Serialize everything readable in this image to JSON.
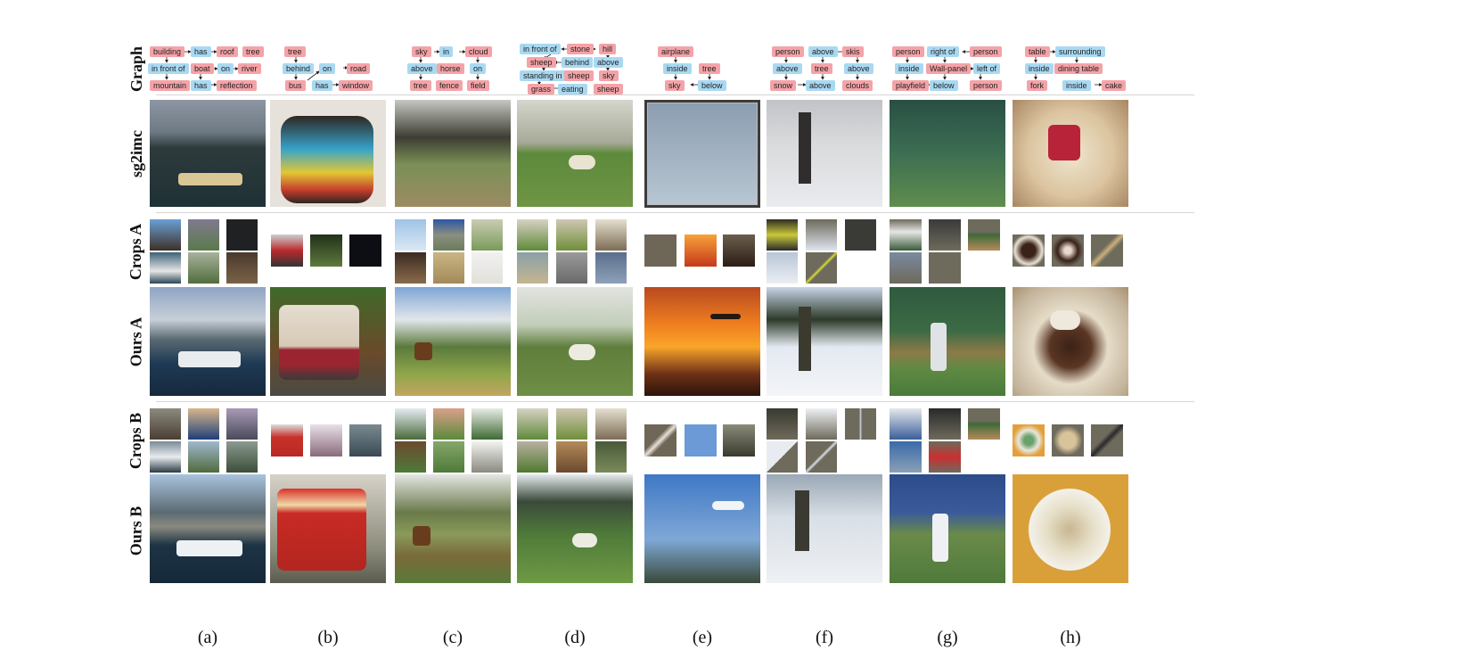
{
  "rows": {
    "graph": "Graph",
    "sg2im": "sg2imc",
    "crops_a": "Crops A",
    "ours_a": "Ours A",
    "crops_b": "Crops B",
    "ours_b": "Ours B"
  },
  "columns": [
    "(a)",
    "(b)",
    "(c)",
    "(d)",
    "(e)",
    "(f)",
    "(g)",
    "(h)"
  ],
  "graphs": [
    [
      {
        "t": "building",
        "k": "obj"
      },
      {
        "t": "has",
        "k": "rel"
      },
      {
        "t": "roof",
        "k": "obj"
      },
      {
        "t": "tree",
        "k": "obj"
      },
      {
        "t": "in front of",
        "k": "rel"
      },
      {
        "t": "boat",
        "k": "obj"
      },
      {
        "t": "on",
        "k": "rel"
      },
      {
        "t": "river",
        "k": "obj"
      },
      {
        "t": "mountain",
        "k": "obj"
      },
      {
        "t": "has",
        "k": "rel"
      },
      {
        "t": "reflection",
        "k": "obj"
      }
    ],
    [
      {
        "t": "tree",
        "k": "obj"
      },
      {
        "t": "behind",
        "k": "rel"
      },
      {
        "t": "on",
        "k": "rel"
      },
      {
        "t": "road",
        "k": "obj"
      },
      {
        "t": "bus",
        "k": "obj"
      },
      {
        "t": "has",
        "k": "rel"
      },
      {
        "t": "window",
        "k": "obj"
      }
    ],
    [
      {
        "t": "sky",
        "k": "obj"
      },
      {
        "t": "in",
        "k": "rel"
      },
      {
        "t": "cloud",
        "k": "obj"
      },
      {
        "t": "above",
        "k": "rel"
      },
      {
        "t": "horse",
        "k": "obj"
      },
      {
        "t": "on",
        "k": "rel"
      },
      {
        "t": "tree",
        "k": "obj"
      },
      {
        "t": "fence",
        "k": "obj"
      },
      {
        "t": "field",
        "k": "obj"
      }
    ],
    [
      {
        "t": "in front of",
        "k": "rel"
      },
      {
        "t": "stone",
        "k": "obj"
      },
      {
        "t": "hill",
        "k": "obj"
      },
      {
        "t": "sheep",
        "k": "obj"
      },
      {
        "t": "behind",
        "k": "rel"
      },
      {
        "t": "above",
        "k": "rel"
      },
      {
        "t": "standing in",
        "k": "rel"
      },
      {
        "t": "sheep",
        "k": "obj"
      },
      {
        "t": "sky",
        "k": "obj"
      },
      {
        "t": "grass",
        "k": "obj"
      },
      {
        "t": "eating",
        "k": "rel"
      },
      {
        "t": "sheep",
        "k": "obj"
      }
    ],
    [
      {
        "t": "airplane",
        "k": "obj"
      },
      {
        "t": "inside",
        "k": "rel"
      },
      {
        "t": "tree",
        "k": "obj"
      },
      {
        "t": "sky",
        "k": "obj"
      },
      {
        "t": "below",
        "k": "rel"
      }
    ],
    [
      {
        "t": "person",
        "k": "obj"
      },
      {
        "t": "above",
        "k": "rel"
      },
      {
        "t": "skis",
        "k": "obj"
      },
      {
        "t": "above",
        "k": "rel"
      },
      {
        "t": "tree",
        "k": "obj"
      },
      {
        "t": "above",
        "k": "rel"
      },
      {
        "t": "snow",
        "k": "obj"
      },
      {
        "t": "above",
        "k": "rel"
      },
      {
        "t": "clouds",
        "k": "obj"
      }
    ],
    [
      {
        "t": "person",
        "k": "obj"
      },
      {
        "t": "right of",
        "k": "rel"
      },
      {
        "t": "person",
        "k": "obj"
      },
      {
        "t": "inside",
        "k": "rel"
      },
      {
        "t": "Wall-panel",
        "k": "obj"
      },
      {
        "t": "left of",
        "k": "rel"
      },
      {
        "t": "playfield",
        "k": "obj"
      },
      {
        "t": "below",
        "k": "rel"
      },
      {
        "t": "person",
        "k": "obj"
      }
    ],
    [
      {
        "t": "table",
        "k": "obj"
      },
      {
        "t": "surrounding",
        "k": "rel"
      },
      {
        "t": "inside",
        "k": "rel"
      },
      {
        "t": "dining table",
        "k": "obj"
      },
      {
        "t": "fork",
        "k": "obj"
      },
      {
        "t": "inside",
        "k": "rel"
      },
      {
        "t": "cake",
        "k": "obj"
      }
    ]
  ]
}
